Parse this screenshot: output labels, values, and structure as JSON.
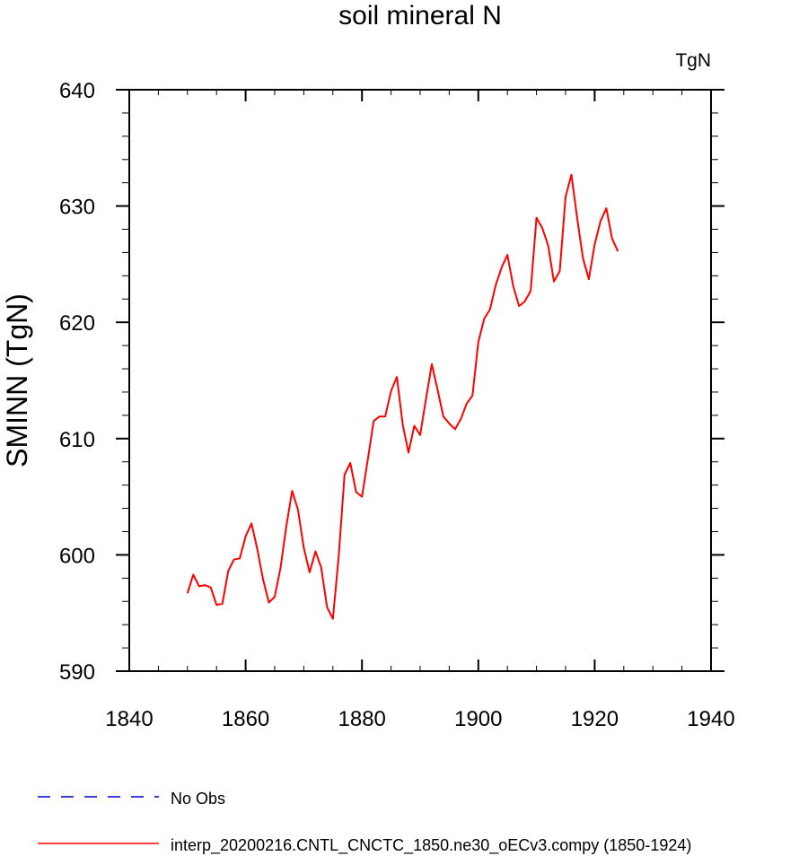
{
  "chart_data": {
    "type": "line",
    "title": "soil mineral N",
    "units_label": "TgN",
    "ylabel": "SMINN  (TgN)",
    "xlabel": "",
    "xlim": [
      1840,
      1940
    ],
    "ylim": [
      590,
      640
    ],
    "xticks": [
      1840,
      1860,
      1880,
      1900,
      1920,
      1940
    ],
    "yticks": [
      590,
      600,
      610,
      620,
      630,
      640
    ],
    "grid": false,
    "legend_position": "bottom-left",
    "series": [
      {
        "name": "interp_20200216.CNTL_CNCTC_1850.ne30_oECv3.compy (1850-1924)",
        "color": "#ff0000",
        "style": "solid",
        "x": [
          1850,
          1851,
          1852,
          1853,
          1854,
          1855,
          1856,
          1857,
          1858,
          1859,
          1860,
          1861,
          1862,
          1863,
          1864,
          1865,
          1866,
          1867,
          1868,
          1869,
          1870,
          1871,
          1872,
          1873,
          1874,
          1875,
          1876,
          1877,
          1878,
          1879,
          1880,
          1881,
          1882,
          1883,
          1884,
          1885,
          1886,
          1887,
          1888,
          1889,
          1890,
          1891,
          1892,
          1893,
          1894,
          1895,
          1896,
          1897,
          1898,
          1899,
          1900,
          1901,
          1902,
          1903,
          1904,
          1905,
          1906,
          1907,
          1908,
          1909,
          1910,
          1911,
          1912,
          1913,
          1914,
          1915,
          1916,
          1917,
          1918,
          1919,
          1920,
          1921,
          1922,
          1923,
          1924
        ],
        "y": [
          596.7,
          598.3,
          597.3,
          597.4,
          597.2,
          595.7,
          595.8,
          598.6,
          599.6,
          599.7,
          601.6,
          602.7,
          600.5,
          597.9,
          595.9,
          596.4,
          598.9,
          602.5,
          605.5,
          603.9,
          600.6,
          598.5,
          600.3,
          598.9,
          595.5,
          594.5,
          599.9,
          606.9,
          607.9,
          605.4,
          605.0,
          608.2,
          611.5,
          611.9,
          611.9,
          614.1,
          615.3,
          611.2,
          608.8,
          611.1,
          610.3,
          613.4,
          616.4,
          614.2,
          611.9,
          611.3,
          610.8,
          611.7,
          613.0,
          613.7,
          618.3,
          620.3,
          621.1,
          623.2,
          624.7,
          625.8,
          623.1,
          621.4,
          621.8,
          622.7,
          629.0,
          628.1,
          626.6,
          623.5,
          624.4,
          630.8,
          632.7,
          628.9,
          625.5,
          623.7,
          626.7,
          628.7,
          629.8,
          627.2,
          626.1
        ]
      },
      {
        "name": "No Obs",
        "color": "#0000cc",
        "style": "dashed",
        "x": [],
        "y": []
      }
    ]
  }
}
